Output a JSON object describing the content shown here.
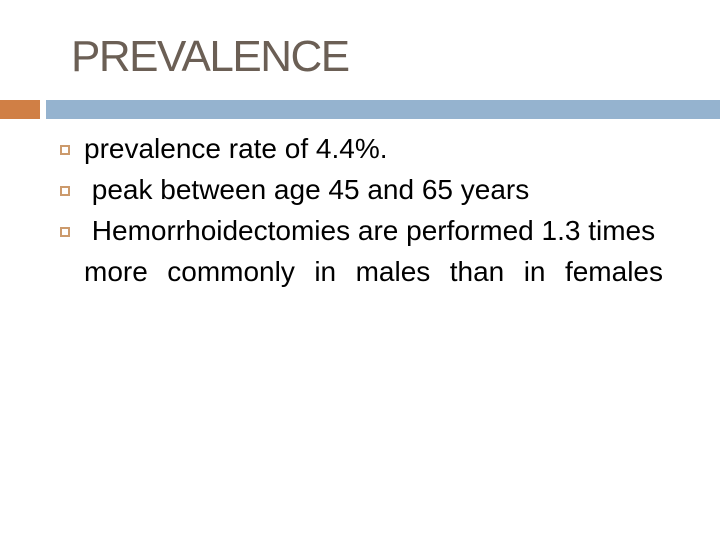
{
  "slide": {
    "title": "PREVALENCE",
    "bullets": [
      {
        "text": "prevalence rate of 4.4%."
      },
      {
        "text": " peak between age 45 and 65 years"
      },
      {
        "line1": " Hemorrhoidectomies are performed 1.3 times",
        "line2": "more commonly in males than in females"
      }
    ],
    "colors": {
      "title_text": "#6B5F55",
      "accent_orange": "#D07F45",
      "accent_blue": "#95B3CF",
      "bullet_square_border": "#CC9A6C",
      "body_text": "#000000",
      "background": "#FFFFFF"
    }
  }
}
